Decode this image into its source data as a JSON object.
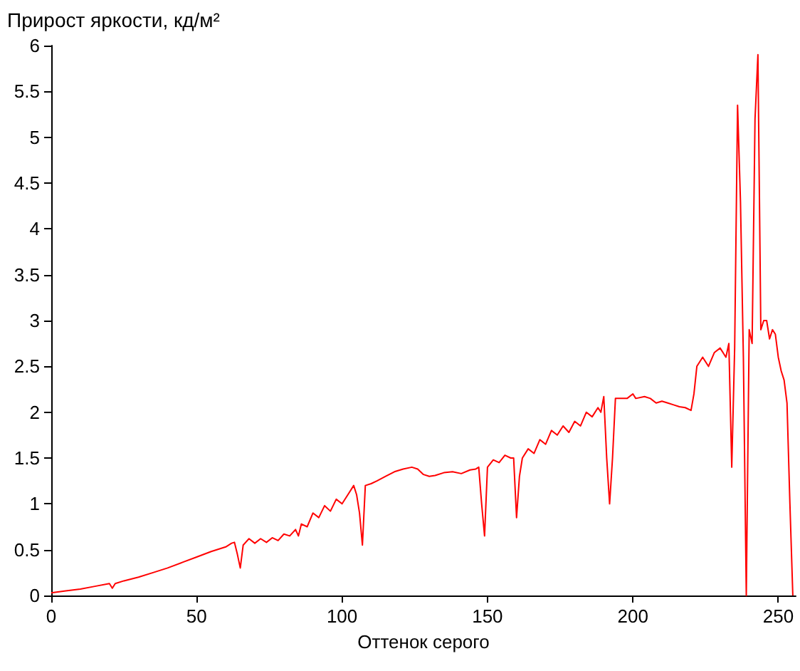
{
  "chart_data": {
    "type": "line",
    "title": "Прирост яркости, кд/м²",
    "xlabel": "Оттенок серого",
    "xlim": [
      0,
      256
    ],
    "xticks": [
      0,
      50,
      100,
      150,
      200,
      250
    ],
    "ylim": [
      0,
      6
    ],
    "yticks": [
      0,
      0.5,
      1,
      1.5,
      2,
      2.5,
      3,
      3.5,
      4,
      4.5,
      5,
      5.5,
      6
    ],
    "grid": false,
    "marker": "none",
    "line_style": "solid",
    "series": [
      {
        "color": "#ff0000",
        "x": [
          0,
          5,
          10,
          15,
          20,
          21,
          22,
          25,
          30,
          35,
          40,
          45,
          50,
          55,
          60,
          62,
          63,
          64,
          65,
          66,
          68,
          70,
          72,
          74,
          76,
          78,
          80,
          82,
          84,
          85,
          86,
          88,
          90,
          92,
          94,
          96,
          98,
          100,
          102,
          104,
          105,
          106,
          107,
          108,
          110,
          112,
          115,
          118,
          121,
          124,
          126,
          128,
          130,
          132,
          135,
          138,
          141,
          144,
          146,
          147,
          148,
          149,
          150,
          152,
          154,
          156,
          158,
          159,
          160,
          161,
          162,
          164,
          166,
          168,
          170,
          172,
          174,
          176,
          178,
          180,
          182,
          184,
          186,
          188,
          189,
          190,
          191,
          192,
          193,
          194,
          198,
          200,
          201,
          204,
          206,
          208,
          210,
          212,
          214,
          216,
          218,
          220,
          221,
          222,
          224,
          226,
          228,
          230,
          232,
          233,
          234,
          235,
          236,
          237,
          238,
          239,
          240,
          241,
          242,
          243,
          244,
          245,
          246,
          247,
          248,
          249,
          250,
          251,
          252,
          253,
          254,
          255
        ],
        "values": [
          0.03,
          0.05,
          0.07,
          0.1,
          0.13,
          0.08,
          0.13,
          0.16,
          0.2,
          0.25,
          0.3,
          0.36,
          0.42,
          0.48,
          0.53,
          0.57,
          0.58,
          0.45,
          0.3,
          0.55,
          0.62,
          0.57,
          0.62,
          0.58,
          0.63,
          0.6,
          0.67,
          0.65,
          0.72,
          0.65,
          0.78,
          0.75,
          0.9,
          0.85,
          0.98,
          0.92,
          1.05,
          1.0,
          1.1,
          1.2,
          1.1,
          0.9,
          0.55,
          1.2,
          1.22,
          1.25,
          1.3,
          1.35,
          1.38,
          1.4,
          1.38,
          1.32,
          1.3,
          1.31,
          1.34,
          1.35,
          1.33,
          1.37,
          1.38,
          1.4,
          1.0,
          0.65,
          1.4,
          1.48,
          1.45,
          1.53,
          1.5,
          1.5,
          0.85,
          1.3,
          1.5,
          1.6,
          1.55,
          1.7,
          1.65,
          1.8,
          1.75,
          1.85,
          1.78,
          1.9,
          1.85,
          2.0,
          1.95,
          2.05,
          2.0,
          2.17,
          1.5,
          1.0,
          1.5,
          2.15,
          2.15,
          2.2,
          2.15,
          2.17,
          2.15,
          2.1,
          2.12,
          2.1,
          2.08,
          2.06,
          2.05,
          2.02,
          2.2,
          2.5,
          2.6,
          2.5,
          2.65,
          2.7,
          2.6,
          2.75,
          1.4,
          2.7,
          5.35,
          4.3,
          2.6,
          0,
          2.9,
          2.75,
          5.2,
          5.9,
          2.9,
          3.0,
          3.0,
          2.8,
          2.9,
          2.85,
          2.6,
          2.45,
          2.35,
          2.1,
          1.0,
          0
        ]
      }
    ]
  }
}
